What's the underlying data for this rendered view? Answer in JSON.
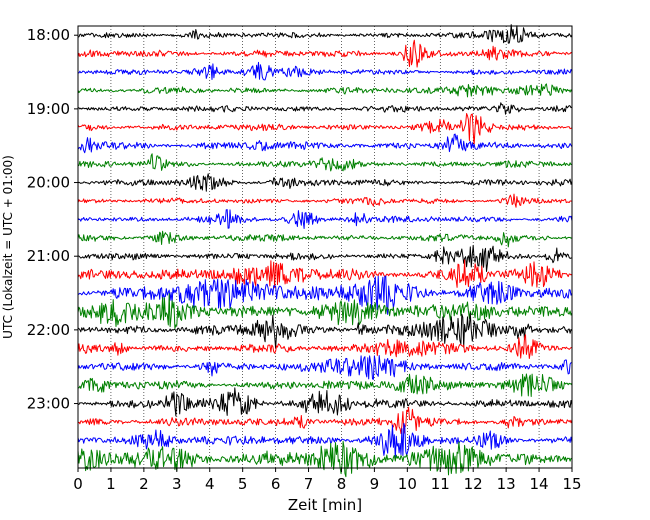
{
  "chart_data": {
    "type": "line",
    "subtype": "helicorder",
    "title": "",
    "xlabel": "Zeit  [min]",
    "ylabel": "UTC (Lokalzeit = UTC + 01:00)",
    "xlim": [
      0,
      15
    ],
    "x_ticks": [
      "0",
      "1",
      "2",
      "3",
      "4",
      "5",
      "6",
      "7",
      "8",
      "9",
      "10",
      "11",
      "12",
      "13",
      "14",
      "15"
    ],
    "y_ticks": [
      "18:00",
      "19:00",
      "20:00",
      "21:00",
      "22:00",
      "23:00"
    ],
    "line_colors": [
      "#000000",
      "#ff0000",
      "#0000ff",
      "#008000"
    ],
    "vertical_gridlines": "dotted, every minute",
    "traces": [
      {
        "start": "18:00",
        "base_amp": 0.12,
        "bursts": [
          {
            "x": 13.2,
            "w": 0.9,
            "a": 0.6
          },
          {
            "x": 3.5,
            "w": 0.4,
            "a": 0.25
          }
        ]
      },
      {
        "start": "18:15",
        "base_amp": 0.15,
        "bursts": [
          {
            "x": 10.2,
            "w": 0.5,
            "a": 0.8
          },
          {
            "x": 12.6,
            "w": 0.5,
            "a": 0.35
          }
        ]
      },
      {
        "start": "18:30",
        "base_amp": 0.12,
        "bursts": [
          {
            "x": 4.0,
            "w": 0.6,
            "a": 0.35
          },
          {
            "x": 5.5,
            "w": 0.6,
            "a": 0.55
          },
          {
            "x": 6.5,
            "w": 0.5,
            "a": 0.3
          }
        ]
      },
      {
        "start": "18:45",
        "base_amp": 0.14,
        "bursts": [
          {
            "x": 12.0,
            "w": 1.0,
            "a": 0.35
          },
          {
            "x": 14.0,
            "w": 0.8,
            "a": 0.3
          }
        ]
      },
      {
        "start": "19:00",
        "base_amp": 0.14,
        "bursts": [
          {
            "x": 13.0,
            "w": 0.6,
            "a": 0.3
          }
        ]
      },
      {
        "start": "19:15",
        "base_amp": 0.15,
        "bursts": [
          {
            "x": 12.0,
            "w": 0.6,
            "a": 0.9
          },
          {
            "x": 11.0,
            "w": 0.6,
            "a": 0.3
          }
        ]
      },
      {
        "start": "19:30",
        "base_amp": 0.17,
        "bursts": [
          {
            "x": 0.3,
            "w": 0.3,
            "a": 0.5
          },
          {
            "x": 11.4,
            "w": 0.5,
            "a": 0.6
          },
          {
            "x": 5.5,
            "w": 0.4,
            "a": 0.35
          }
        ]
      },
      {
        "start": "19:45",
        "base_amp": 0.15,
        "bursts": [
          {
            "x": 2.3,
            "w": 0.4,
            "a": 0.45
          },
          {
            "x": 7.8,
            "w": 0.8,
            "a": 0.3
          }
        ]
      },
      {
        "start": "20:00",
        "base_amp": 0.14,
        "bursts": [
          {
            "x": 3.8,
            "w": 0.8,
            "a": 0.5
          },
          {
            "x": 6.2,
            "w": 0.5,
            "a": 0.3
          }
        ]
      },
      {
        "start": "20:15",
        "base_amp": 0.12,
        "bursts": [
          {
            "x": 13.2,
            "w": 0.4,
            "a": 0.4
          },
          {
            "x": 9.0,
            "w": 0.5,
            "a": 0.2
          }
        ]
      },
      {
        "start": "20:30",
        "base_amp": 0.14,
        "bursts": [
          {
            "x": 4.5,
            "w": 0.5,
            "a": 0.45
          },
          {
            "x": 6.8,
            "w": 0.6,
            "a": 0.45
          },
          {
            "x": 8.5,
            "w": 0.4,
            "a": 0.4
          }
        ]
      },
      {
        "start": "20:45",
        "base_amp": 0.15,
        "bursts": [
          {
            "x": 2.6,
            "w": 0.5,
            "a": 0.35
          },
          {
            "x": 13.0,
            "w": 0.5,
            "a": 0.4
          }
        ]
      },
      {
        "start": "21:00",
        "base_amp": 0.15,
        "bursts": [
          {
            "x": 12.2,
            "w": 0.8,
            "a": 0.85
          },
          {
            "x": 11.1,
            "w": 0.4,
            "a": 0.5
          },
          {
            "x": 14.5,
            "w": 0.4,
            "a": 0.3
          }
        ]
      },
      {
        "start": "21:15",
        "base_amp": 0.22,
        "bursts": [
          {
            "x": 5.5,
            "w": 2.0,
            "a": 0.6
          },
          {
            "x": 11.8,
            "w": 0.8,
            "a": 0.8
          },
          {
            "x": 14.0,
            "w": 0.6,
            "a": 0.7
          }
        ]
      },
      {
        "start": "21:30",
        "base_amp": 0.25,
        "bursts": [
          {
            "x": 4.5,
            "w": 2.5,
            "a": 0.8
          },
          {
            "x": 9.2,
            "w": 1.5,
            "a": 0.9
          },
          {
            "x": 12.5,
            "w": 1.0,
            "a": 0.6
          }
        ]
      },
      {
        "start": "21:45",
        "base_amp": 0.28,
        "bursts": [
          {
            "x": 1.3,
            "w": 1.2,
            "a": 0.8
          },
          {
            "x": 2.8,
            "w": 0.6,
            "a": 0.7
          },
          {
            "x": 8.0,
            "w": 1.5,
            "a": 0.5
          },
          {
            "x": 12.0,
            "w": 1.2,
            "a": 0.5
          }
        ]
      },
      {
        "start": "22:00",
        "base_amp": 0.22,
        "bursts": [
          {
            "x": 6.0,
            "w": 0.8,
            "a": 0.85
          },
          {
            "x": 11.5,
            "w": 1.5,
            "a": 0.8
          },
          {
            "x": 8.6,
            "w": 0.3,
            "a": 0.5
          },
          {
            "x": 13.5,
            "w": 0.4,
            "a": 0.5
          }
        ]
      },
      {
        "start": "22:15",
        "base_amp": 0.18,
        "bursts": [
          {
            "x": 9.8,
            "w": 1.5,
            "a": 0.5
          },
          {
            "x": 13.6,
            "w": 0.5,
            "a": 0.8
          },
          {
            "x": 1.3,
            "w": 0.3,
            "a": 0.4
          }
        ]
      },
      {
        "start": "22:30",
        "base_amp": 0.18,
        "bursts": [
          {
            "x": 8.8,
            "w": 1.5,
            "a": 0.8
          },
          {
            "x": 4.0,
            "w": 0.3,
            "a": 0.6
          },
          {
            "x": 14.9,
            "w": 0.2,
            "a": 0.5
          }
        ]
      },
      {
        "start": "22:45",
        "base_amp": 0.2,
        "bursts": [
          {
            "x": 10.2,
            "w": 1.0,
            "a": 0.6
          },
          {
            "x": 13.8,
            "w": 0.8,
            "a": 0.5
          },
          {
            "x": 0.6,
            "w": 0.4,
            "a": 0.4
          }
        ]
      },
      {
        "start": "23:00",
        "base_amp": 0.2,
        "bursts": [
          {
            "x": 3.0,
            "w": 0.5,
            "a": 0.8
          },
          {
            "x": 4.8,
            "w": 0.8,
            "a": 0.75
          },
          {
            "x": 7.5,
            "w": 1.0,
            "a": 0.6
          }
        ]
      },
      {
        "start": "23:15",
        "base_amp": 0.18,
        "bursts": [
          {
            "x": 10.0,
            "w": 0.5,
            "a": 0.9
          },
          {
            "x": 6.8,
            "w": 0.6,
            "a": 0.35
          },
          {
            "x": 13.2,
            "w": 0.4,
            "a": 0.3
          }
        ]
      },
      {
        "start": "23:30",
        "base_amp": 0.22,
        "bursts": [
          {
            "x": 9.6,
            "w": 0.8,
            "a": 0.9
          },
          {
            "x": 2.4,
            "w": 0.8,
            "a": 0.5
          },
          {
            "x": 12.5,
            "w": 0.5,
            "a": 0.35
          }
        ]
      },
      {
        "start": "23:45",
        "base_amp": 0.28,
        "bursts": [
          {
            "x": 2.6,
            "w": 1.5,
            "a": 0.6
          },
          {
            "x": 8.0,
            "w": 1.2,
            "a": 0.8
          },
          {
            "x": 11.2,
            "w": 1.5,
            "a": 0.7
          },
          {
            "x": 0.3,
            "w": 0.5,
            "a": 0.4
          }
        ]
      }
    ]
  }
}
